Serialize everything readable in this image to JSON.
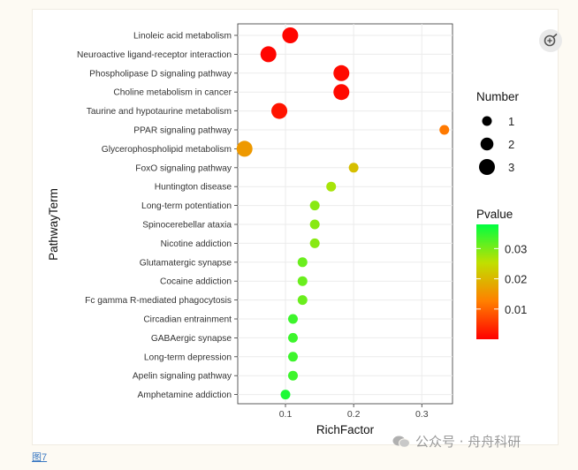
{
  "caption": "图7",
  "watermark": "公众号 · 舟舟科研",
  "icons": {
    "zoom": "zoom-in-icon",
    "wechat": "wechat-icon"
  },
  "chart_data": {
    "type": "scatter",
    "title": "",
    "xlabel": "RichFactor",
    "ylabel": "PathwayTerm",
    "xlim": [
      0.03,
      0.345
    ],
    "xticks": [
      0.1,
      0.2,
      0.3
    ],
    "grid": true,
    "categories": [
      "Linoleic acid metabolism",
      "Neuroactive ligand-receptor interaction",
      "Phospholipase D signaling pathway",
      "Choline metabolism in cancer",
      "Taurine and hypotaurine metabolism",
      "PPAR signaling pathway",
      "Glycerophospholipid metabolism",
      "FoxO signaling pathway",
      "Huntington disease",
      "Long-term potentiation",
      "Spinocerebellar ataxia",
      "Nicotine addiction",
      "Glutamatergic synapse",
      "Cocaine addiction",
      "Fc gamma R-mediated phagocytosis",
      "Circadian entrainment",
      "GABAergic synapse",
      "Long-term depression",
      "Apelin signaling pathway",
      "Amphetamine addiction"
    ],
    "points": [
      {
        "term": "Linoleic acid metabolism",
        "rich_factor": 0.107,
        "number": 3,
        "pvalue": 0.0005
      },
      {
        "term": "Neuroactive ligand-receptor interaction",
        "rich_factor": 0.075,
        "number": 3,
        "pvalue": 0.0005
      },
      {
        "term": "Phospholipase D signaling pathway",
        "rich_factor": 0.182,
        "number": 3,
        "pvalue": 0.001
      },
      {
        "term": "Choline metabolism in cancer",
        "rich_factor": 0.182,
        "number": 3,
        "pvalue": 0.001
      },
      {
        "term": "Taurine and hypotaurine metabolism",
        "rich_factor": 0.091,
        "number": 3,
        "pvalue": 0.002
      },
      {
        "term": "PPAR signaling pathway",
        "rich_factor": 0.333,
        "number": 1,
        "pvalue": 0.012
      },
      {
        "term": "Glycerophospholipid metabolism",
        "rich_factor": 0.04,
        "number": 3,
        "pvalue": 0.016
      },
      {
        "term": "FoxO signaling pathway",
        "rich_factor": 0.2,
        "number": 1,
        "pvalue": 0.021
      },
      {
        "term": "Huntington disease",
        "rich_factor": 0.167,
        "number": 1,
        "pvalue": 0.027
      },
      {
        "term": "Long-term potentiation",
        "rich_factor": 0.143,
        "number": 1,
        "pvalue": 0.029
      },
      {
        "term": "Spinocerebellar ataxia",
        "rich_factor": 0.143,
        "number": 1,
        "pvalue": 0.029
      },
      {
        "term": "Nicotine addiction",
        "rich_factor": 0.143,
        "number": 1,
        "pvalue": 0.029
      },
      {
        "term": "Glutamatergic synapse",
        "rich_factor": 0.125,
        "number": 1,
        "pvalue": 0.031
      },
      {
        "term": "Cocaine addiction",
        "rich_factor": 0.125,
        "number": 1,
        "pvalue": 0.031
      },
      {
        "term": "Fc gamma R-mediated phagocytosis",
        "rich_factor": 0.125,
        "number": 1,
        "pvalue": 0.031
      },
      {
        "term": "Circadian entrainment",
        "rich_factor": 0.111,
        "number": 1,
        "pvalue": 0.034
      },
      {
        "term": "GABAergic synapse",
        "rich_factor": 0.111,
        "number": 1,
        "pvalue": 0.034
      },
      {
        "term": "Long-term depression",
        "rich_factor": 0.111,
        "number": 1,
        "pvalue": 0.034
      },
      {
        "term": "Apelin signaling pathway",
        "rich_factor": 0.111,
        "number": 1,
        "pvalue": 0.034
      },
      {
        "term": "Amphetamine addiction",
        "rich_factor": 0.1,
        "number": 1,
        "pvalue": 0.036
      }
    ],
    "size_legend": {
      "title": "Number",
      "values": [
        1,
        2,
        3
      ]
    },
    "color_legend": {
      "title": "Pvalue",
      "range": [
        0.0,
        0.038
      ],
      "ticks": [
        0.01,
        0.02,
        0.03
      ],
      "tick_labels": [
        "0.01",
        "0.02",
        "0.03"
      ],
      "colors": [
        "#ff0000",
        "#ff8000",
        "#c0e000",
        "#00ff40"
      ]
    },
    "panel_background": "#ffffff",
    "grid_color": "#ebebeb"
  }
}
